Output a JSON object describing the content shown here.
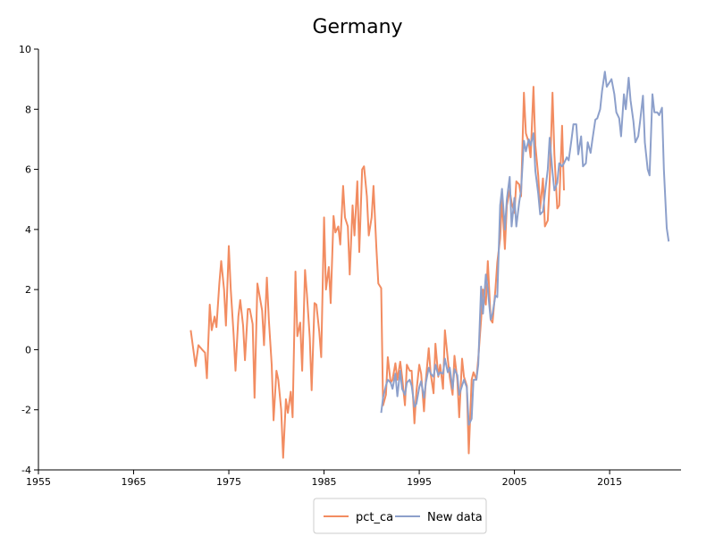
{
  "chart_data": {
    "type": "line",
    "title": "Germany",
    "xlabel": "",
    "ylabel": "",
    "xlim": [
      1955,
      2022.5
    ],
    "ylim": [
      -4,
      10
    ],
    "x_ticks": [
      "1955",
      "1965",
      "1975",
      "1985",
      "1995",
      "2005",
      "2015"
    ],
    "x_tick_values": [
      1955,
      1965,
      1975,
      1985,
      1995,
      2005,
      2015
    ],
    "y_ticks": [
      "-4",
      "-2",
      "0",
      "2",
      "4",
      "6",
      "8",
      "10"
    ],
    "y_tick_values": [
      -4,
      -2,
      0,
      2,
      4,
      6,
      8,
      10
    ],
    "grid": false,
    "legend_position": "bottom-center",
    "series": [
      {
        "name": "pct_ca",
        "color": "#f28c61",
        "points": [
          [
            1971.0,
            0.65
          ],
          [
            1971.5,
            -0.55
          ],
          [
            1971.8,
            0.15
          ],
          [
            1972.2,
            0.0
          ],
          [
            1972.5,
            -0.1
          ],
          [
            1972.7,
            -0.95
          ],
          [
            1973.0,
            1.5
          ],
          [
            1973.2,
            0.65
          ],
          [
            1973.5,
            1.1
          ],
          [
            1973.7,
            0.75
          ],
          [
            1974.0,
            2.2
          ],
          [
            1974.2,
            2.95
          ],
          [
            1974.5,
            2.0
          ],
          [
            1974.7,
            0.8
          ],
          [
            1975.0,
            3.45
          ],
          [
            1975.2,
            2.0
          ],
          [
            1975.5,
            0.5
          ],
          [
            1975.7,
            -0.7
          ],
          [
            1976.0,
            1.1
          ],
          [
            1976.2,
            1.65
          ],
          [
            1976.5,
            0.8
          ],
          [
            1976.7,
            -0.35
          ],
          [
            1977.0,
            1.35
          ],
          [
            1977.2,
            1.35
          ],
          [
            1977.5,
            0.85
          ],
          [
            1977.7,
            -1.6
          ],
          [
            1978.0,
            2.2
          ],
          [
            1978.2,
            1.85
          ],
          [
            1978.5,
            1.3
          ],
          [
            1978.7,
            0.15
          ],
          [
            1979.0,
            2.4
          ],
          [
            1979.2,
            1.0
          ],
          [
            1979.5,
            -0.5
          ],
          [
            1979.7,
            -2.35
          ],
          [
            1980.0,
            -0.7
          ],
          [
            1980.2,
            -1.0
          ],
          [
            1980.5,
            -2.0
          ],
          [
            1980.7,
            -3.6
          ],
          [
            1981.0,
            -1.65
          ],
          [
            1981.2,
            -2.1
          ],
          [
            1981.5,
            -1.4
          ],
          [
            1981.7,
            -2.25
          ],
          [
            1982.0,
            2.6
          ],
          [
            1982.2,
            0.45
          ],
          [
            1982.5,
            0.9
          ],
          [
            1982.7,
            -0.7
          ],
          [
            1983.0,
            2.65
          ],
          [
            1983.2,
            1.85
          ],
          [
            1983.5,
            0.4
          ],
          [
            1983.7,
            -1.35
          ],
          [
            1984.0,
            1.55
          ],
          [
            1984.2,
            1.5
          ],
          [
            1984.5,
            0.6
          ],
          [
            1984.7,
            -0.25
          ],
          [
            1985.0,
            4.4
          ],
          [
            1985.2,
            2.0
          ],
          [
            1985.5,
            2.75
          ],
          [
            1985.7,
            1.55
          ],
          [
            1986.0,
            4.45
          ],
          [
            1986.2,
            3.9
          ],
          [
            1986.5,
            4.1
          ],
          [
            1986.7,
            3.5
          ],
          [
            1987.0,
            5.45
          ],
          [
            1987.2,
            4.4
          ],
          [
            1987.5,
            4.1
          ],
          [
            1987.7,
            2.5
          ],
          [
            1988.0,
            4.8
          ],
          [
            1988.2,
            3.8
          ],
          [
            1988.5,
            5.6
          ],
          [
            1988.7,
            3.25
          ],
          [
            1989.0,
            6.0
          ],
          [
            1989.2,
            6.1
          ],
          [
            1989.5,
            5.1
          ],
          [
            1989.7,
            3.8
          ],
          [
            1990.0,
            4.4
          ],
          [
            1990.2,
            5.45
          ],
          [
            1990.5,
            3.4
          ],
          [
            1990.7,
            2.2
          ],
          [
            1991.0,
            2.05
          ],
          [
            1991.2,
            -1.85
          ],
          [
            1991.5,
            -1.5
          ],
          [
            1991.7,
            -0.25
          ],
          [
            1992.0,
            -1.1
          ],
          [
            1992.2,
            -1.0
          ],
          [
            1992.5,
            -0.45
          ],
          [
            1992.7,
            -1.0
          ],
          [
            1993.0,
            -0.4
          ],
          [
            1993.2,
            -0.9
          ],
          [
            1993.5,
            -1.85
          ],
          [
            1993.7,
            -0.5
          ],
          [
            1994.0,
            -0.7
          ],
          [
            1994.2,
            -0.7
          ],
          [
            1994.5,
            -2.45
          ],
          [
            1994.7,
            -1.4
          ],
          [
            1995.0,
            -0.5
          ],
          [
            1995.2,
            -0.8
          ],
          [
            1995.5,
            -2.05
          ],
          [
            1995.7,
            -1.0
          ],
          [
            1996.0,
            0.05
          ],
          [
            1996.2,
            -0.8
          ],
          [
            1996.5,
            -1.45
          ],
          [
            1996.7,
            0.2
          ],
          [
            1997.0,
            -0.9
          ],
          [
            1997.2,
            -0.5
          ],
          [
            1997.5,
            -1.3
          ],
          [
            1997.7,
            0.65
          ],
          [
            1998.0,
            -0.3
          ],
          [
            1998.2,
            -0.9
          ],
          [
            1998.5,
            -1.5
          ],
          [
            1998.7,
            -0.2
          ],
          [
            1999.0,
            -1.0
          ],
          [
            1999.2,
            -2.25
          ],
          [
            1999.5,
            -0.3
          ],
          [
            1999.7,
            -0.9
          ],
          [
            2000.0,
            -1.2
          ],
          [
            2000.2,
            -3.45
          ],
          [
            2000.5,
            -1.0
          ],
          [
            2000.7,
            -0.75
          ],
          [
            2001.0,
            -1.0
          ],
          [
            2001.2,
            -0.3
          ],
          [
            2001.5,
            1.0
          ],
          [
            2001.7,
            2.0
          ],
          [
            2002.0,
            1.5
          ],
          [
            2002.2,
            2.95
          ],
          [
            2002.5,
            1.0
          ],
          [
            2002.7,
            0.9
          ],
          [
            2003.0,
            2.0
          ],
          [
            2003.2,
            2.9
          ],
          [
            2003.5,
            3.7
          ],
          [
            2003.7,
            5.0
          ],
          [
            2004.0,
            3.35
          ],
          [
            2004.2,
            4.8
          ],
          [
            2004.5,
            5.3
          ],
          [
            2004.7,
            4.9
          ],
          [
            2005.0,
            4.55
          ],
          [
            2005.2,
            5.6
          ],
          [
            2005.5,
            5.5
          ],
          [
            2005.7,
            5.1
          ],
          [
            2006.0,
            8.55
          ],
          [
            2006.2,
            7.2
          ],
          [
            2006.5,
            6.9
          ],
          [
            2006.7,
            6.4
          ],
          [
            2007.0,
            8.75
          ],
          [
            2007.2,
            6.8
          ],
          [
            2007.5,
            5.8
          ],
          [
            2007.7,
            4.7
          ],
          [
            2008.0,
            5.7
          ],
          [
            2008.2,
            4.1
          ],
          [
            2008.5,
            4.3
          ],
          [
            2008.7,
            5.6
          ],
          [
            2009.0,
            8.55
          ],
          [
            2009.2,
            6.5
          ],
          [
            2009.5,
            4.7
          ],
          [
            2009.7,
            4.8
          ],
          [
            2010.0,
            7.45
          ],
          [
            2010.2,
            5.3
          ]
        ]
      },
      {
        "name": "New data",
        "color": "#8da0cb",
        "points": [
          [
            1991.0,
            -2.1
          ],
          [
            1991.2,
            -1.6
          ],
          [
            1991.5,
            -1.2
          ],
          [
            1991.7,
            -1.0
          ],
          [
            1992.0,
            -1.1
          ],
          [
            1992.2,
            -1.3
          ],
          [
            1992.5,
            -0.8
          ],
          [
            1992.7,
            -1.55
          ],
          [
            1993.0,
            -0.7
          ],
          [
            1993.2,
            -1.3
          ],
          [
            1993.5,
            -1.5
          ],
          [
            1993.7,
            -1.1
          ],
          [
            1994.0,
            -1.0
          ],
          [
            1994.2,
            -1.2
          ],
          [
            1994.5,
            -1.9
          ],
          [
            1994.7,
            -1.8
          ],
          [
            1995.0,
            -1.25
          ],
          [
            1995.2,
            -1.05
          ],
          [
            1995.5,
            -1.6
          ],
          [
            1995.7,
            -1.1
          ],
          [
            1996.0,
            -0.6
          ],
          [
            1996.2,
            -0.8
          ],
          [
            1996.5,
            -0.9
          ],
          [
            1996.7,
            -0.5
          ],
          [
            1997.0,
            -0.85
          ],
          [
            1997.2,
            -0.75
          ],
          [
            1997.5,
            -0.8
          ],
          [
            1997.7,
            -0.3
          ],
          [
            1998.0,
            -0.75
          ],
          [
            1998.2,
            -0.6
          ],
          [
            1998.5,
            -1.3
          ],
          [
            1998.7,
            -0.65
          ],
          [
            1999.0,
            -0.85
          ],
          [
            1999.2,
            -1.5
          ],
          [
            1999.5,
            -1.2
          ],
          [
            1999.7,
            -1.0
          ],
          [
            2000.0,
            -1.25
          ],
          [
            2000.2,
            -2.5
          ],
          [
            2000.5,
            -2.3
          ],
          [
            2000.7,
            -1.0
          ],
          [
            2001.0,
            -1.0
          ],
          [
            2001.2,
            -0.5
          ],
          [
            2001.5,
            2.1
          ],
          [
            2001.7,
            1.2
          ],
          [
            2002.0,
            2.5
          ],
          [
            2002.2,
            2.0
          ],
          [
            2002.5,
            1.0
          ],
          [
            2002.7,
            1.2
          ],
          [
            2003.0,
            1.8
          ],
          [
            2003.2,
            1.75
          ],
          [
            2003.5,
            4.8
          ],
          [
            2003.7,
            5.35
          ],
          [
            2004.0,
            4.0
          ],
          [
            2004.2,
            5.0
          ],
          [
            2004.5,
            5.75
          ],
          [
            2004.7,
            4.1
          ],
          [
            2005.0,
            5.05
          ],
          [
            2005.2,
            4.1
          ],
          [
            2005.5,
            4.9
          ],
          [
            2005.7,
            5.3
          ],
          [
            2006.0,
            6.95
          ],
          [
            2006.2,
            6.6
          ],
          [
            2006.5,
            7.0
          ],
          [
            2006.7,
            6.8
          ],
          [
            2007.0,
            7.2
          ],
          [
            2007.2,
            5.95
          ],
          [
            2007.5,
            5.2
          ],
          [
            2007.7,
            4.5
          ],
          [
            2008.0,
            4.6
          ],
          [
            2008.2,
            5.2
          ],
          [
            2008.5,
            6.0
          ],
          [
            2008.7,
            7.05
          ],
          [
            2009.0,
            5.9
          ],
          [
            2009.2,
            5.3
          ],
          [
            2009.5,
            5.55
          ],
          [
            2009.7,
            6.2
          ],
          [
            2010.0,
            6.1
          ],
          [
            2010.2,
            6.2
          ],
          [
            2010.5,
            6.4
          ],
          [
            2010.7,
            6.3
          ],
          [
            2011.0,
            7.0
          ],
          [
            2011.2,
            7.5
          ],
          [
            2011.5,
            7.5
          ],
          [
            2011.7,
            6.5
          ],
          [
            2012.0,
            7.1
          ],
          [
            2012.2,
            6.1
          ],
          [
            2012.5,
            6.2
          ],
          [
            2012.7,
            6.9
          ],
          [
            2013.0,
            6.55
          ],
          [
            2013.2,
            7.0
          ],
          [
            2013.5,
            7.65
          ],
          [
            2013.7,
            7.7
          ],
          [
            2014.0,
            8.0
          ],
          [
            2014.2,
            8.6
          ],
          [
            2014.5,
            9.25
          ],
          [
            2014.7,
            8.75
          ],
          [
            2015.0,
            8.9
          ],
          [
            2015.2,
            9.0
          ],
          [
            2015.5,
            8.5
          ],
          [
            2015.7,
            7.9
          ],
          [
            2016.0,
            7.7
          ],
          [
            2016.2,
            7.1
          ],
          [
            2016.5,
            8.5
          ],
          [
            2016.7,
            8.0
          ],
          [
            2017.0,
            9.05
          ],
          [
            2017.2,
            8.3
          ],
          [
            2017.5,
            7.6
          ],
          [
            2017.7,
            6.9
          ],
          [
            2018.0,
            7.1
          ],
          [
            2018.2,
            7.6
          ],
          [
            2018.5,
            8.45
          ],
          [
            2018.7,
            6.9
          ],
          [
            2019.0,
            6.0
          ],
          [
            2019.2,
            5.8
          ],
          [
            2019.5,
            8.5
          ],
          [
            2019.7,
            7.9
          ],
          [
            2020.0,
            7.9
          ],
          [
            2020.2,
            7.8
          ],
          [
            2020.5,
            8.05
          ],
          [
            2020.7,
            6.0
          ],
          [
            2021.0,
            4.05
          ],
          [
            2021.2,
            3.6
          ]
        ]
      }
    ]
  }
}
